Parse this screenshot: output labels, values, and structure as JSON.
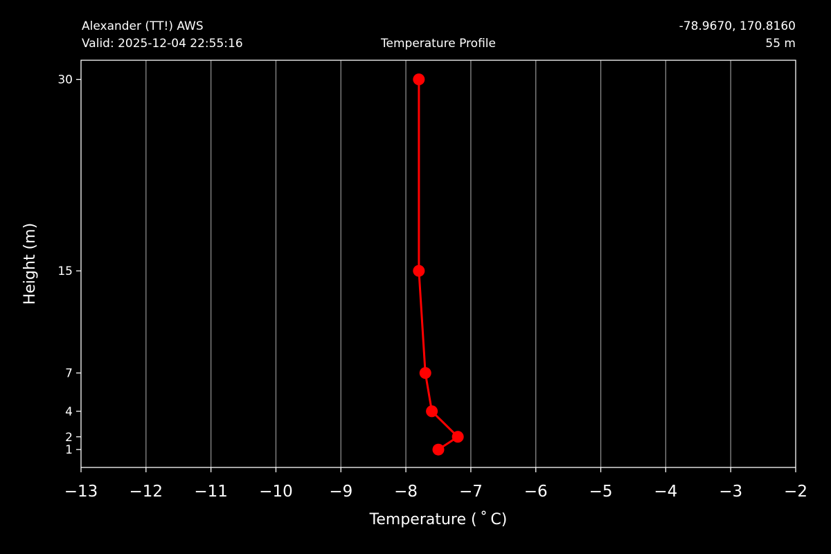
{
  "header": {
    "station_name": "Alexander (TT!) AWS",
    "valid_time": "Valid: 2025-12-04 22:55:16",
    "product": "Temperature Profile",
    "coordinates": "-78.9670, 170.8160",
    "elevation": "55 m"
  },
  "chart_data": {
    "type": "line",
    "xlabel": "Temperature ($^\\circ$C)",
    "xlabel_display": "Temperature ( ˚ C)",
    "ylabel": "Height (m)",
    "xlim": [
      -13,
      -2
    ],
    "ylim": [
      -0.4,
      31.5
    ],
    "grid": "vertical",
    "x_ticks": [
      -13,
      -12,
      -11,
      -10,
      -9,
      -8,
      -7,
      -6,
      -5,
      -4,
      -3,
      -2
    ],
    "x_tick_labels": [
      "−13",
      "−12",
      "−11",
      "−10",
      "−9",
      "−8",
      "−7",
      "−6",
      "−5",
      "−4",
      "−3",
      "−2"
    ],
    "y_ticks": [
      1,
      2,
      4,
      7,
      15,
      30
    ],
    "y_tick_labels": [
      "1",
      "2",
      "4",
      "7",
      "15",
      "30"
    ],
    "series": [
      {
        "color": "#ff0000",
        "marker": "circle",
        "points": [
          {
            "x": -7.5,
            "y": 1
          },
          {
            "x": -7.2,
            "y": 2
          },
          {
            "x": -7.6,
            "y": 4
          },
          {
            "x": -7.7,
            "y": 7
          },
          {
            "x": -7.8,
            "y": 15
          },
          {
            "x": -7.8,
            "y": 30
          }
        ]
      }
    ]
  }
}
